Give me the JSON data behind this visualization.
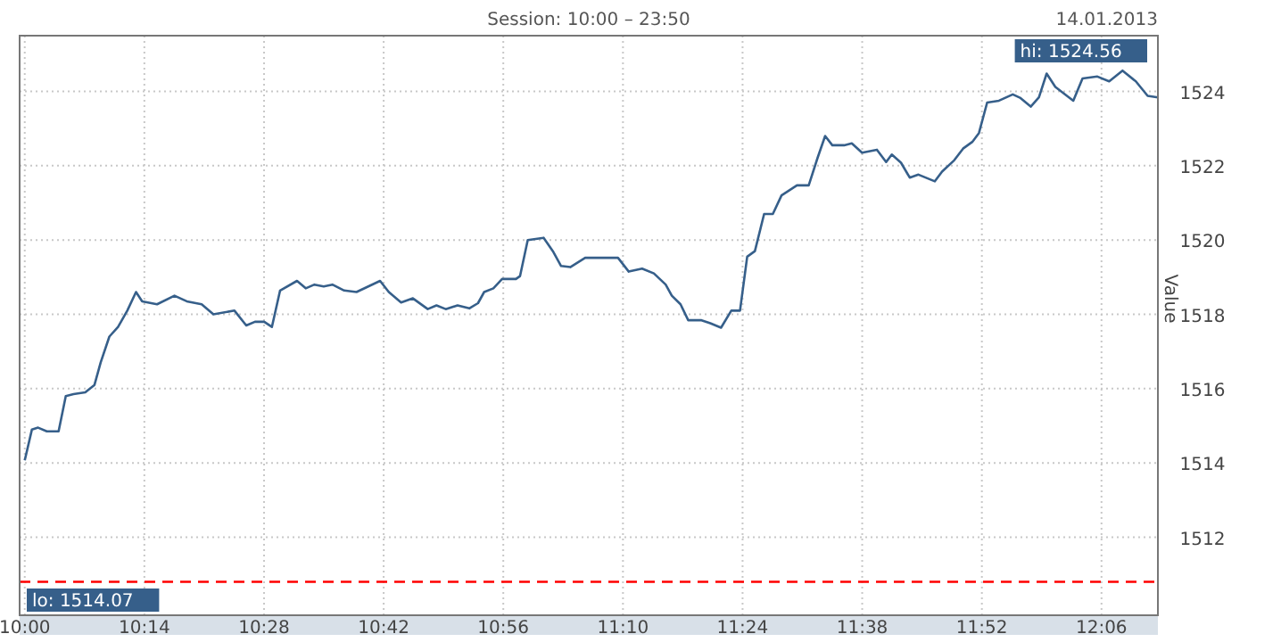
{
  "chart_data": {
    "type": "line",
    "title": "Session: 10:00 – 23:50",
    "subtitle": "14.01.2013",
    "ylabel": "Value",
    "annotations": [
      "hi: 1524.56",
      "lo: 1514.07"
    ],
    "series": [
      {
        "color": "#365f8a",
        "x": [
          10,
          10.014,
          10.026,
          10.043,
          10.066,
          10.08,
          10.095,
          10.118,
          10.136,
          10.148,
          10.165,
          10.182,
          10.2,
          10.217,
          10.229,
          10.258,
          10.292,
          10.316,
          10.345,
          10.368,
          10.409,
          10.432,
          10.449,
          10.467,
          10.482,
          10.498,
          10.531,
          10.548,
          10.565,
          10.583,
          10.6,
          10.623,
          10.647,
          10.693,
          10.71,
          10.734,
          10.757,
          10.786,
          10.803,
          10.821,
          10.844,
          10.867,
          10.884,
          10.896,
          10.914,
          10.931,
          10.958,
          10.966,
          10.981,
          11.012,
          11.03,
          11.046,
          11.064,
          11.093,
          11.157,
          11.178,
          11.204,
          11.227,
          11.25,
          11.262,
          11.279,
          11.294,
          11.32,
          11.337,
          11.358,
          11.378,
          11.395,
          11.409,
          11.424,
          11.442,
          11.459,
          11.476,
          11.506,
          11.529,
          11.546,
          11.561,
          11.575,
          11.598,
          11.613,
          11.633,
          11.662,
          11.68,
          11.691,
          11.709,
          11.726,
          11.743,
          11.775,
          11.789,
          11.813,
          11.83,
          11.848,
          11.861,
          11.877,
          11.9,
          11.927,
          11.941,
          11.962,
          11.978,
          11.993,
          12.01,
          12.045,
          12.063,
          12.092,
          12.115,
          12.141,
          12.167,
          12.19,
          12.21
        ],
        "values": [
          1514.07,
          1514.9,
          1514.95,
          1514.85,
          1514.85,
          1515.8,
          1515.85,
          1515.9,
          1516.1,
          1516.7,
          1517.4,
          1517.66,
          1518.1,
          1518.6,
          1518.35,
          1518.27,
          1518.5,
          1518.35,
          1518.27,
          1518.0,
          1518.1,
          1517.7,
          1517.8,
          1517.8,
          1517.66,
          1518.64,
          1518.9,
          1518.7,
          1518.8,
          1518.75,
          1518.8,
          1518.64,
          1518.6,
          1518.9,
          1518.6,
          1518.32,
          1518.43,
          1518.14,
          1518.24,
          1518.14,
          1518.24,
          1518.16,
          1518.3,
          1518.6,
          1518.7,
          1518.95,
          1518.95,
          1519.03,
          1520.0,
          1520.06,
          1519.7,
          1519.3,
          1519.27,
          1519.52,
          1519.52,
          1519.15,
          1519.23,
          1519.1,
          1518.8,
          1518.5,
          1518.27,
          1517.84,
          1517.84,
          1517.76,
          1517.64,
          1518.1,
          1518.1,
          1519.55,
          1519.7,
          1520.7,
          1520.7,
          1521.2,
          1521.47,
          1521.47,
          1522.2,
          1522.8,
          1522.55,
          1522.55,
          1522.6,
          1522.35,
          1522.43,
          1522.1,
          1522.3,
          1522.08,
          1521.68,
          1521.76,
          1521.58,
          1521.84,
          1522.15,
          1522.46,
          1522.64,
          1522.88,
          1523.7,
          1523.75,
          1523.92,
          1523.83,
          1523.59,
          1523.84,
          1524.48,
          1524.12,
          1523.75,
          1524.35,
          1524.4,
          1524.27,
          1524.56,
          1524.27,
          1523.88,
          1523.84
        ]
      }
    ],
    "xlim": [
      9.99,
      12.21
    ],
    "ylim": [
      1509.9,
      1525.5
    ],
    "xticks": [
      {
        "value": 10,
        "label": "10:00"
      },
      {
        "value": 10.2333,
        "label": "10:14"
      },
      {
        "value": 10.4667,
        "label": "10:28"
      },
      {
        "value": 10.7,
        "label": "10:42"
      },
      {
        "value": 10.9333,
        "label": "10:56"
      },
      {
        "value": 11.1667,
        "label": "11:10"
      },
      {
        "value": 11.4,
        "label": "11:24"
      },
      {
        "value": 11.6333,
        "label": "11:38"
      },
      {
        "value": 11.8667,
        "label": "11:52"
      },
      {
        "value": 12.1,
        "label": "12:06"
      }
    ],
    "yticks": [
      1512,
      1514,
      1516,
      1518,
      1520,
      1522,
      1524
    ],
    "ref_lines": [
      {
        "axis": "y",
        "value": 1510.8,
        "color": "#ff0000",
        "line_style": "dashed"
      }
    ],
    "grid": true,
    "line_style": "solid",
    "marker": "none"
  }
}
